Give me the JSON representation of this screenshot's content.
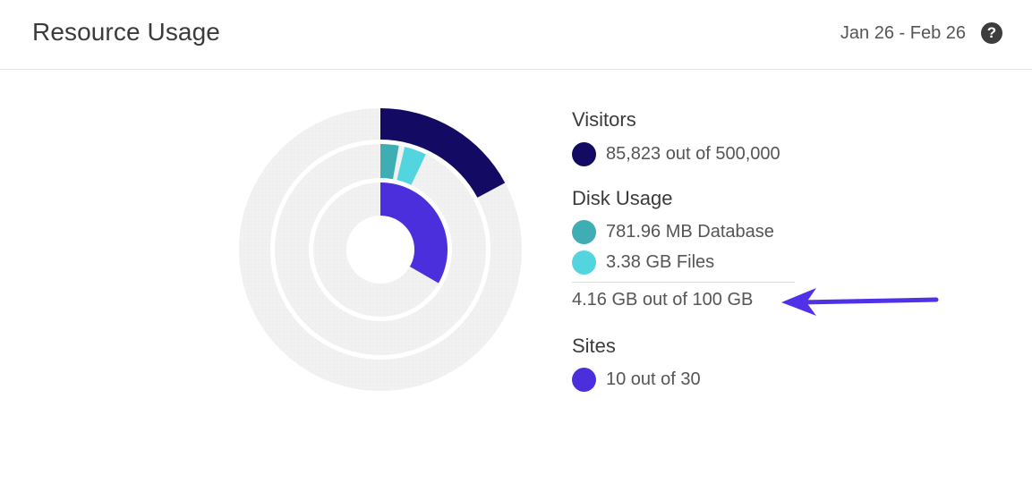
{
  "header": {
    "title": "Resource Usage",
    "date_range": "Jan 26 - Feb 26",
    "help_icon": "question-icon"
  },
  "colors": {
    "visitors": "#130a63",
    "database": "#3fadb4",
    "files": "#52d5de",
    "sites": "#4b2fdc",
    "track": "#f0f0f0",
    "arrow": "#5031e8"
  },
  "legend": {
    "visitors": {
      "title": "Visitors",
      "item": "85,823 out of 500,000"
    },
    "disk_usage": {
      "title": "Disk Usage",
      "database": "781.96 MB Database",
      "files": "3.38 GB Files",
      "total": "4.16 GB out of 100 GB"
    },
    "sites": {
      "title": "Sites",
      "item": "10 out of 30"
    }
  },
  "chart_data": {
    "type": "radial-bar",
    "rings": [
      {
        "ring": "outer",
        "segments": [
          {
            "value": 85823,
            "max": 500000
          }
        ]
      },
      {
        "ring": "middle",
        "segments": [
          {
            "value": 781.96,
            "unit": "MB"
          },
          {
            "value": 3.38,
            "unit": "GB"
          }
        ],
        "max_gb": 100
      },
      {
        "ring": "inner",
        "segments": [
          {
            "value": 10,
            "max": 30
          }
        ]
      }
    ]
  }
}
